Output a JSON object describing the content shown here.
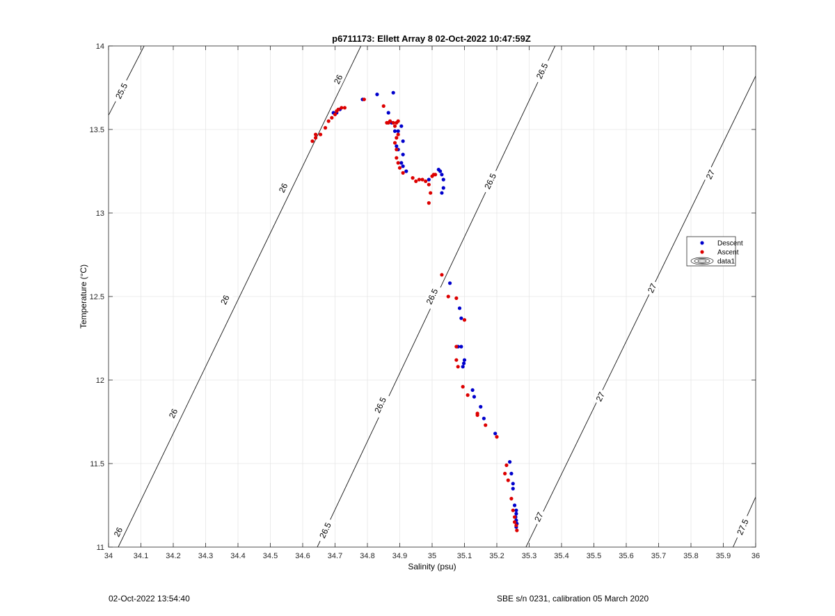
{
  "chart_data": {
    "type": "scatter",
    "title": "p6711173: Ellett Array 8 02-Oct-2022 10:47:59Z",
    "xlabel": "Salinity (psu)",
    "ylabel": "Temperature (°C)",
    "xlim": [
      34,
      36
    ],
    "ylim": [
      11,
      14
    ],
    "xticks": [
      34,
      34.1,
      34.2,
      34.3,
      34.4,
      34.5,
      34.6,
      34.7,
      34.8,
      34.9,
      35,
      35.1,
      35.2,
      35.3,
      35.4,
      35.5,
      35.6,
      35.7,
      35.8,
      35.9,
      36
    ],
    "xtick_labels": [
      "34",
      "34.1",
      "34.2",
      "34.3",
      "34.4",
      "34.5",
      "34.6",
      "34.7",
      "34.8",
      "34.9",
      "35",
      "35.1",
      "35.2",
      "35.3",
      "35.4",
      "35.5",
      "35.6",
      "35.7",
      "35.8",
      "35.9",
      "36"
    ],
    "yticks": [
      11,
      11.5,
      12,
      12.5,
      13,
      13.5,
      14
    ],
    "ytick_labels": [
      "11",
      "11.5",
      "12",
      "12.5",
      "13",
      "13.5",
      "14"
    ],
    "grid": true,
    "legend": {
      "placement": "right",
      "entries": [
        "Descent",
        "Ascent",
        "data1"
      ]
    },
    "series": [
      {
        "name": "Descent",
        "color": "#0000cc",
        "points": [
          [
            34.695,
            13.6
          ],
          [
            34.705,
            13.6
          ],
          [
            34.715,
            13.62
          ],
          [
            34.785,
            13.68
          ],
          [
            34.83,
            13.71
          ],
          [
            34.88,
            13.72
          ],
          [
            34.865,
            13.6
          ],
          [
            34.875,
            13.54
          ],
          [
            34.885,
            13.49
          ],
          [
            34.895,
            13.49
          ],
          [
            34.905,
            13.52
          ],
          [
            34.91,
            13.43
          ],
          [
            34.89,
            13.4
          ],
          [
            34.895,
            13.38
          ],
          [
            34.91,
            13.35
          ],
          [
            34.905,
            13.3
          ],
          [
            34.91,
            13.28
          ],
          [
            34.92,
            13.25
          ],
          [
            34.99,
            13.2
          ],
          [
            35.02,
            13.26
          ],
          [
            35.025,
            13.25
          ],
          [
            35.03,
            13.23
          ],
          [
            35.035,
            13.2
          ],
          [
            35.035,
            13.15
          ],
          [
            35.03,
            13.12
          ],
          [
            35.055,
            12.58
          ],
          [
            35.085,
            12.43
          ],
          [
            35.09,
            12.37
          ],
          [
            35.08,
            12.2
          ],
          [
            35.09,
            12.2
          ],
          [
            35.1,
            12.12
          ],
          [
            35.098,
            12.1
          ],
          [
            35.095,
            12.08
          ],
          [
            35.125,
            11.94
          ],
          [
            35.13,
            11.9
          ],
          [
            35.15,
            11.84
          ],
          [
            35.16,
            11.77
          ],
          [
            35.195,
            11.68
          ],
          [
            35.24,
            11.51
          ],
          [
            35.245,
            11.44
          ],
          [
            35.25,
            11.38
          ],
          [
            35.25,
            11.35
          ],
          [
            35.255,
            11.25
          ],
          [
            35.26,
            11.22
          ],
          [
            35.26,
            11.2
          ],
          [
            35.258,
            11.18
          ],
          [
            35.26,
            11.16
          ],
          [
            35.262,
            11.14
          ],
          [
            35.26,
            11.12
          ]
        ]
      },
      {
        "name": "Ascent",
        "color": "#dd0000",
        "points": [
          [
            34.63,
            13.43
          ],
          [
            34.64,
            13.45
          ],
          [
            34.64,
            13.47
          ],
          [
            34.655,
            13.47
          ],
          [
            34.67,
            13.51
          ],
          [
            34.68,
            13.55
          ],
          [
            34.69,
            13.57
          ],
          [
            34.7,
            13.59
          ],
          [
            34.705,
            13.61
          ],
          [
            34.71,
            13.62
          ],
          [
            34.72,
            13.63
          ],
          [
            34.73,
            13.63
          ],
          [
            34.79,
            13.68
          ],
          [
            34.85,
            13.64
          ],
          [
            34.86,
            13.54
          ],
          [
            34.865,
            13.54
          ],
          [
            34.87,
            13.55
          ],
          [
            34.88,
            13.54
          ],
          [
            34.89,
            13.54
          ],
          [
            34.895,
            13.55
          ],
          [
            34.885,
            13.52
          ],
          [
            34.895,
            13.47
          ],
          [
            34.89,
            13.45
          ],
          [
            34.885,
            13.42
          ],
          [
            34.89,
            13.38
          ],
          [
            34.89,
            13.33
          ],
          [
            34.895,
            13.3
          ],
          [
            34.9,
            13.27
          ],
          [
            34.91,
            13.24
          ],
          [
            34.94,
            13.21
          ],
          [
            34.95,
            13.19
          ],
          [
            34.96,
            13.2
          ],
          [
            34.97,
            13.2
          ],
          [
            34.98,
            13.19
          ],
          [
            34.99,
            13.17
          ],
          [
            34.995,
            13.12
          ],
          [
            34.99,
            13.06
          ],
          [
            35.0,
            13.22
          ],
          [
            35.005,
            13.23
          ],
          [
            35.01,
            13.23
          ],
          [
            35.03,
            12.63
          ],
          [
            35.05,
            12.5
          ],
          [
            35.075,
            12.49
          ],
          [
            35.1,
            12.36
          ],
          [
            35.075,
            12.2
          ],
          [
            35.075,
            12.12
          ],
          [
            35.08,
            12.08
          ],
          [
            35.095,
            11.96
          ],
          [
            35.11,
            11.91
          ],
          [
            35.14,
            11.8
          ],
          [
            35.14,
            11.79
          ],
          [
            35.165,
            11.73
          ],
          [
            35.2,
            11.66
          ],
          [
            35.23,
            11.49
          ],
          [
            35.225,
            11.44
          ],
          [
            35.235,
            11.4
          ],
          [
            35.245,
            11.29
          ],
          [
            35.25,
            11.22
          ],
          [
            35.255,
            11.18
          ],
          [
            35.255,
            11.15
          ],
          [
            35.26,
            11.13
          ],
          [
            35.262,
            11.1
          ]
        ]
      }
    ],
    "contours": [
      {
        "level": "25.5",
        "lines": [
          [
            [
              34,
              13.585
            ],
            [
              34.11,
              14
            ]
          ]
        ],
        "labels": [
          {
            "text": "25.5",
            "at": [
              34.04,
              13.73
            ]
          }
        ]
      },
      {
        "level": "26",
        "lines": [
          [
            [
              34.03,
              11
            ],
            [
              34.78,
              14
            ]
          ]
        ],
        "labels": [
          {
            "text": "26",
            "at": [
              34.03,
              11.09
            ]
          },
          {
            "text": "26",
            "at": [
              34.2,
              11.8
            ]
          },
          {
            "text": "26",
            "at": [
              34.36,
              12.48
            ]
          },
          {
            "text": "26",
            "at": [
              34.54,
              13.15
            ]
          },
          {
            "text": "26",
            "at": [
              34.71,
              13.8
            ]
          }
        ]
      },
      {
        "level": "26.5",
        "lines": [
          [
            [
              34.645,
              11
            ],
            [
              35.38,
              14
            ]
          ]
        ],
        "labels": [
          {
            "text": "26.5",
            "at": [
              34.67,
              11.1
            ]
          },
          {
            "text": "26.5",
            "at": [
              34.84,
              11.85
            ]
          },
          {
            "text": "26.5",
            "at": [
              35.0,
              12.5
            ]
          },
          {
            "text": "26.5",
            "at": [
              35.18,
              13.19
            ]
          },
          {
            "text": "26.5",
            "at": [
              35.34,
              13.85
            ]
          }
        ]
      },
      {
        "level": "27",
        "lines": [
          [
            [
              35.29,
              11
            ],
            [
              36,
              13.82
            ]
          ]
        ],
        "labels": [
          {
            "text": "27",
            "at": [
              35.33,
              11.18
            ]
          },
          {
            "text": "27",
            "at": [
              35.52,
              11.9
            ]
          },
          {
            "text": "27",
            "at": [
              35.68,
              12.55
            ]
          },
          {
            "text": "27",
            "at": [
              35.86,
              13.23
            ]
          }
        ]
      },
      {
        "level": "27.5",
        "lines": [
          [
            [
              35.93,
              11
            ],
            [
              36,
              11.3
            ]
          ]
        ],
        "labels": [
          {
            "text": "27.5",
            "at": [
              35.96,
              11.12
            ]
          }
        ]
      }
    ]
  },
  "footer": {
    "timestamp": "02-Oct-2022 13:54:40",
    "calibration": "SBE s/n 0231, calibration 05 March 2020"
  }
}
